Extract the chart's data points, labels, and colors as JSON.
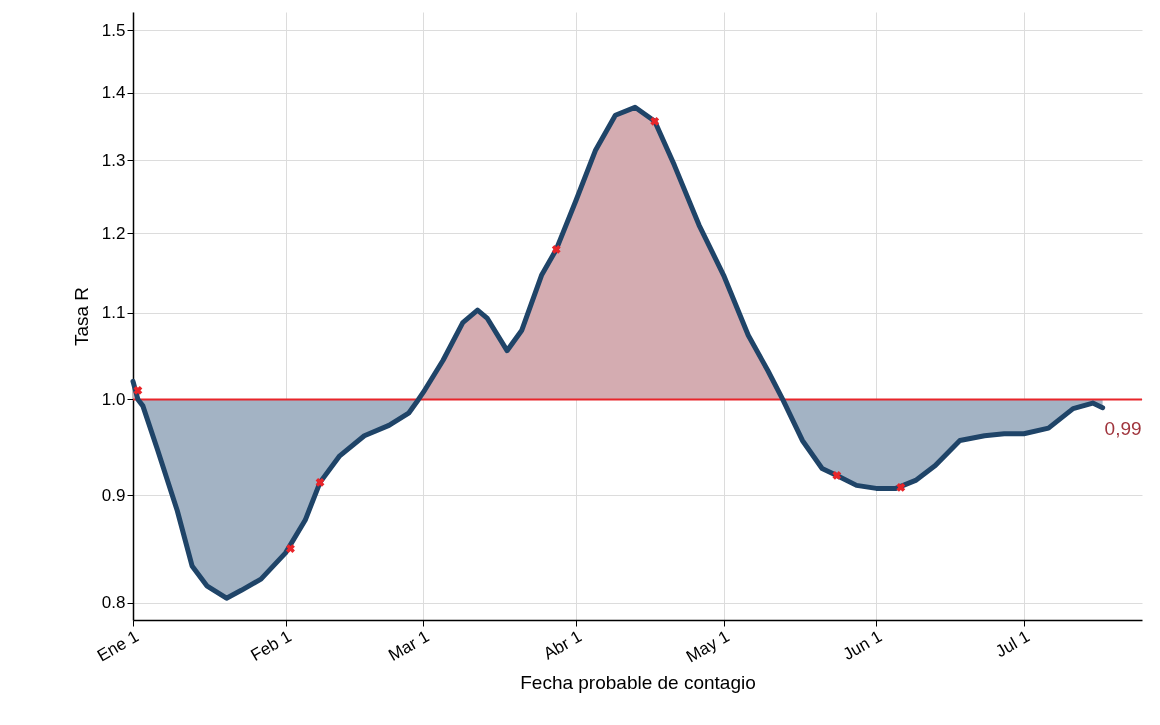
{
  "chart_data": {
    "type": "line",
    "xlabel": "Fecha probable de contagio",
    "ylabel": "Tasa R",
    "x": [
      "--01-01",
      "--01-02",
      "--01-03",
      "--01-06",
      "--01-10",
      "--01-13",
      "--01-16",
      "--01-20",
      "--01-23",
      "--01-27",
      "--02-01",
      "--02-05",
      "--02-08",
      "--02-12",
      "--02-17",
      "--02-22",
      "--02-26",
      "--02-28",
      "--03-01",
      "--03-05",
      "--03-09",
      "--03-12",
      "--03-14",
      "--03-18",
      "--03-21",
      "--03-25",
      "--03-28",
      "--04-01",
      "--04-05",
      "--04-09",
      "--04-13",
      "--04-17",
      "--04-21",
      "--04-26",
      "--05-01",
      "--05-06",
      "--05-10",
      "--05-13",
      "--05-17",
      "--05-21",
      "--05-24",
      "--05-28",
      "--06-01",
      "--06-05",
      "--06-09",
      "--06-13",
      "--06-18",
      "--06-23",
      "--06-27",
      "--07-01",
      "--07-06",
      "--07-11",
      "--07-15",
      "--07-17"
    ],
    "series": [
      {
        "type": "area",
        "color": "#d4acb1",
        "x": [
          "--01-01",
          "--01-01",
          "--01-02"
        ],
        "values": [
          1.0,
          1.02,
          1.0
        ]
      },
      {
        "type": "area",
        "color": "#a3b3c4",
        "x": [
          "--01-02",
          "--01-03",
          "--01-06",
          "--01-10",
          "--01-13",
          "--01-16",
          "--01-20",
          "--01-23",
          "--01-27",
          "--02-01",
          "--02-05",
          "--02-08",
          "--02-12",
          "--02-17",
          "--02-22",
          "--02-26",
          "--02-28"
        ],
        "values": [
          1.0,
          0.993,
          0.946,
          0.885,
          0.833,
          0.815,
          0.804,
          0.811,
          0.821,
          0.845,
          0.876,
          0.913,
          0.94,
          0.961,
          0.972,
          0.985,
          1.0
        ]
      },
      {
        "type": "area",
        "color": "#d4acb1",
        "x": [
          "--02-28",
          "--03-01",
          "--03-05",
          "--03-09",
          "--03-12",
          "--03-14",
          "--03-18",
          "--03-21",
          "--03-25",
          "--03-28",
          "--04-01",
          "--04-05",
          "--04-09",
          "--04-13",
          "--04-17",
          "--04-21",
          "--04-26",
          "--05-01",
          "--05-06",
          "--05-10",
          "--05-13"
        ],
        "values": [
          1.0,
          1.008,
          1.044,
          1.088,
          1.103,
          1.093,
          1.055,
          1.079,
          1.146,
          1.179,
          1.244,
          1.315,
          1.366,
          1.378,
          1.357,
          1.293,
          1.211,
          1.146,
          1.073,
          1.032,
          1.0
        ]
      },
      {
        "type": "area",
        "color": "#a3b3c4",
        "x": [
          "--05-13",
          "--05-17",
          "--05-21",
          "--05-24",
          "--05-28",
          "--06-01",
          "--06-05",
          "--06-09",
          "--06-13",
          "--06-18",
          "--06-23",
          "--06-27",
          "--07-01",
          "--07-06",
          "--07-11",
          "--07-15",
          "--07-17",
          "--07-17"
        ],
        "values": [
          1.0,
          0.956,
          0.927,
          0.92,
          0.91,
          0.907,
          0.907,
          0.915,
          0.93,
          0.956,
          0.961,
          0.963,
          0.963,
          0.969,
          0.99,
          0.996,
          0.991,
          1.0
        ]
      },
      {
        "type": "line",
        "color": "#1f4468",
        "values": [
          1.02,
          1.0,
          0.993,
          0.946,
          0.885,
          0.833,
          0.815,
          0.804,
          0.811,
          0.821,
          0.845,
          0.876,
          0.913,
          0.94,
          0.961,
          0.972,
          0.985,
          1.0,
          1.008,
          1.044,
          1.088,
          1.103,
          1.093,
          1.055,
          1.079,
          1.146,
          1.179,
          1.244,
          1.315,
          1.366,
          1.378,
          1.357,
          1.293,
          1.211,
          1.146,
          1.073,
          1.032,
          1.0,
          0.956,
          0.927,
          0.92,
          0.91,
          0.907,
          0.907,
          0.915,
          0.93,
          0.956,
          0.961,
          0.963,
          0.963,
          0.969,
          0.99,
          0.996,
          0.991
        ]
      },
      {
        "type": "scatter",
        "color": "#e8252a",
        "marker": "cross",
        "x": [
          "--01-02",
          "--02-02",
          "--02-08",
          "--03-28",
          "--04-17",
          "--05-24",
          "--06-06"
        ],
        "values": [
          1.01,
          0.849,
          0.913,
          1.179,
          1.357,
          0.92,
          0.908
        ]
      }
    ],
    "ref_lines": [
      {
        "axis": "y",
        "value": 1.0,
        "color": "#e8252a"
      }
    ],
    "annotations": [
      {
        "text": "0,99",
        "x": "--07-17",
        "y": 0.99
      }
    ],
    "log": "y",
    "grid": true,
    "xlim": [
      "--01-01",
      "--07-25"
    ],
    "xticks": [
      {
        "value": "--01-01",
        "label": "Ene 1"
      },
      {
        "value": "--02-01",
        "label": "Feb 1"
      },
      {
        "value": "--03-01",
        "label": "Mar 1"
      },
      {
        "value": "--04-01",
        "label": "Abr 1"
      },
      {
        "value": "--05-01",
        "label": "May 1"
      },
      {
        "value": "--06-01",
        "label": "Jun 1"
      },
      {
        "value": "--07-01",
        "label": "Jul 1"
      }
    ],
    "ylim": [
      0.785,
      1.53
    ],
    "yticks": [
      0.8,
      0.9,
      {
        "value": 1,
        "label": "1.0"
      },
      1.1,
      1.2,
      1.3,
      1.4,
      1.5
    ]
  }
}
